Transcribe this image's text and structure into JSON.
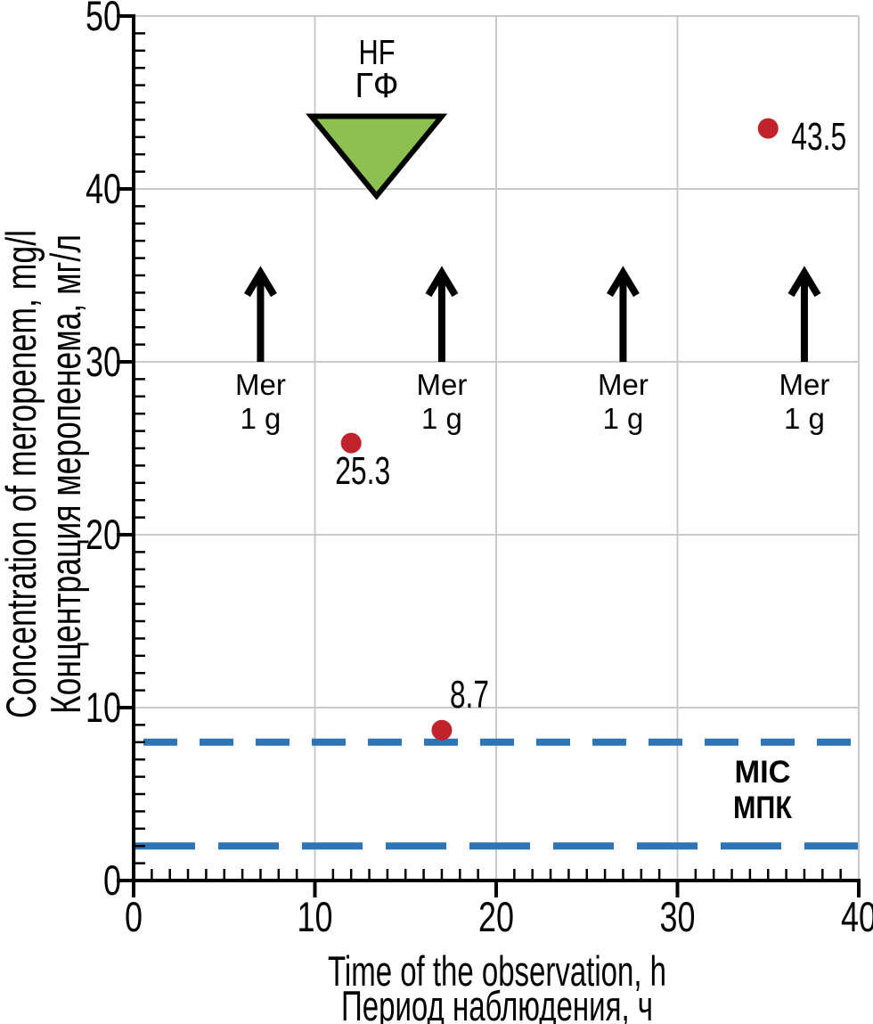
{
  "chart_data": {
    "type": "scatter",
    "title": "",
    "xlabel_lines": [
      "Time of the observation, h",
      "Период наблюдения, ч"
    ],
    "ylabel_lines": [
      "Concentration of meropenem, mg/l",
      "Концентрация меропенема, мг/л"
    ],
    "xlim": [
      0,
      40
    ],
    "ylim": [
      0,
      50
    ],
    "xticks": [
      0,
      10,
      20,
      30,
      40
    ],
    "yticks": [
      0,
      10,
      20,
      30,
      40,
      50
    ],
    "grid": true,
    "points": [
      {
        "x": 12,
        "y": 25.3,
        "label": "25.3"
      },
      {
        "x": 17,
        "y": 8.7,
        "label": "8.7"
      },
      {
        "x": 35,
        "y": 43.5,
        "label": "43.5"
      }
    ],
    "mic_lines": [
      {
        "value": 8,
        "style": "short-dash"
      },
      {
        "value": 2,
        "style": "long-dash"
      }
    ],
    "mic_label_lines": [
      "MIC",
      "МПК"
    ],
    "dose_arrows": {
      "times": [
        7,
        17,
        27,
        37
      ],
      "label_lines": [
        "Mer",
        "1 g"
      ],
      "y_base": 30,
      "y_tip": 35.2
    },
    "hemofiltration_marker": {
      "label_lines": [
        "HF",
        "ГФ"
      ],
      "x_start": 9.8,
      "x_end": 17,
      "y_top": 44.2,
      "y_apex": 39.6
    },
    "colors": {
      "point": "#C0232C",
      "mic_line": "#2E75B6",
      "mic_text": "#254A73",
      "hf_fill": "#8CC152",
      "axis": "#000000",
      "grid": "#C9C9C9"
    }
  }
}
